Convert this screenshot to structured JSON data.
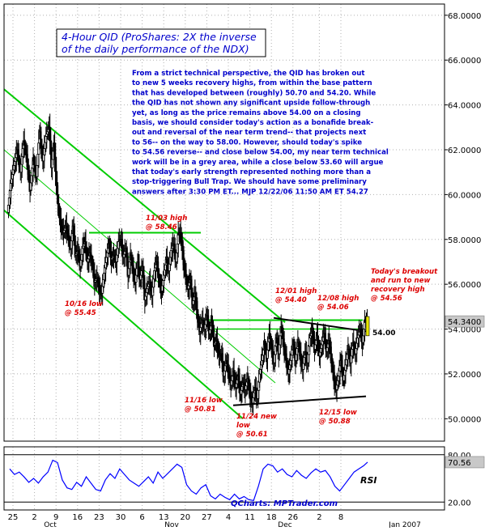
{
  "chart_data": {
    "type": "candlestick",
    "title_lines": [
      "4-Hour QID (ProShares: 2X the inverse",
      "of the daily performance of the NDX)"
    ],
    "commentary_lines": [
      "From a strict technical perspective, the QID has broken out",
      "to new 5 weeks recovery highs, from within the base pattern",
      "that has developed between (roughly) 50.70 and 54.20. While",
      "the QID has not shown any significant upside follow-through",
      "yet, as long as the price remains above 54.00 on a closing",
      "basis, we should consider today's action as a bonafide break-",
      "out and reversal of the near term trend-- that projects next",
      "to 56-- on the way to 58.00. However, should today's spike",
      "to 54.56 reverse-- and close below 54.00, my near term technical",
      "work will be in a grey area, while a close below 53.60 will argue",
      "that today's early strength represented nothing more than a",
      "stop-triggering Bull Trap. We should have some preliminary",
      "answers after 3:30 PM ET... MJP 12/22/06  11:50 AM ET 54.27"
    ],
    "y_axis": {
      "min": 49.0,
      "max": 68.5,
      "ticks": [
        "50.0000",
        "52.0000",
        "54.0000",
        "56.0000",
        "58.0000",
        "60.0000",
        "62.0000",
        "64.0000",
        "66.0000",
        "68.0000"
      ],
      "tick_values": [
        50,
        52,
        54,
        56,
        58,
        60,
        62,
        64,
        66,
        68
      ],
      "last_price_label": "54.3400",
      "last_price": 54.34
    },
    "x_axis": {
      "day_labels": [
        "25",
        "2",
        "9",
        "16",
        "23",
        "30",
        "6",
        "13",
        "20",
        "27",
        "4",
        "11",
        "18",
        "26",
        "2",
        "8"
      ],
      "month_labels": [
        "Oct",
        "Nov",
        "Dec",
        "Jan 2007"
      ]
    },
    "annotations": [
      {
        "lines": [
          "11/03 high",
          "@ 58.46"
        ],
        "color": "#dd0000"
      },
      {
        "lines": [
          "10/16 low",
          "@ 55.45"
        ],
        "color": "#dd0000"
      },
      {
        "lines": [
          "12/01 high",
          "@ 54.40"
        ],
        "color": "#dd0000"
      },
      {
        "lines": [
          "12/08 high",
          "@ 54.06"
        ],
        "color": "#dd0000"
      },
      {
        "lines": [
          "Today's breakout",
          "and run to new",
          "recovery high",
          "@ 54.56"
        ],
        "color": "#dd0000"
      },
      {
        "lines": [
          "11/16 low",
          "@ 50.81"
        ],
        "color": "#dd0000"
      },
      {
        "lines": [
          "11/24 new",
          "low",
          "@ 50.61"
        ],
        "color": "#dd0000"
      },
      {
        "lines": [
          "12/15 low",
          "@ 50.88"
        ],
        "color": "#dd0000"
      },
      {
        "lines": [
          "54.00"
        ],
        "color": "#000000"
      }
    ],
    "price_path": [
      [
        0,
        59.2
      ],
      [
        4,
        60.5
      ],
      [
        8,
        61.3
      ],
      [
        12,
        62.0
      ],
      [
        16,
        61.0
      ],
      [
        20,
        62.4
      ],
      [
        24,
        61.6
      ],
      [
        28,
        60.2
      ],
      [
        32,
        61.5
      ],
      [
        36,
        60.8
      ],
      [
        40,
        62.8
      ],
      [
        44,
        61.5
      ],
      [
        48,
        62.6
      ],
      [
        52,
        63.0
      ],
      [
        55,
        61.2
      ],
      [
        58,
        62.3
      ],
      [
        61,
        60.4
      ],
      [
        64,
        59.2
      ],
      [
        67,
        58.6
      ],
      [
        70,
        58.3
      ],
      [
        73,
        58.6
      ],
      [
        76,
        58.1
      ],
      [
        79,
        57.6
      ],
      [
        82,
        58.6
      ],
      [
        85,
        57.3
      ],
      [
        88,
        57.5
      ],
      [
        91,
        56.8
      ],
      [
        94,
        57.6
      ],
      [
        97,
        57.9
      ],
      [
        100,
        57.0
      ],
      [
        103,
        57.4
      ],
      [
        106,
        56.9
      ],
      [
        109,
        56.1
      ],
      [
        112,
        56.3
      ],
      [
        115,
        55.7
      ],
      [
        118,
        55.6
      ],
      [
        121,
        56.5
      ],
      [
        124,
        57.2
      ],
      [
        127,
        57.8
      ],
      [
        130,
        57.1
      ],
      [
        133,
        57.3
      ],
      [
        136,
        57.0
      ],
      [
        139,
        57.9
      ],
      [
        142,
        58.0
      ],
      [
        145,
        57.2
      ],
      [
        148,
        57.6
      ],
      [
        151,
        56.4
      ],
      [
        154,
        57.3
      ],
      [
        157,
        56.6
      ],
      [
        160,
        56.1
      ],
      [
        163,
        57.0
      ],
      [
        166,
        56.2
      ],
      [
        169,
        56.8
      ],
      [
        172,
        55.3
      ],
      [
        175,
        55.8
      ],
      [
        178,
        56.1
      ],
      [
        181,
        55.5
      ],
      [
        184,
        56.6
      ],
      [
        187,
        57.0
      ],
      [
        190,
        56.1
      ],
      [
        193,
        55.7
      ],
      [
        196,
        56.4
      ],
      [
        199,
        57.1
      ],
      [
        202,
        56.6
      ],
      [
        205,
        57.5
      ],
      [
        208,
        57.8
      ],
      [
        211,
        57.0
      ],
      [
        214,
        58.2
      ],
      [
        217,
        58.3
      ],
      [
        220,
        57.1
      ],
      [
        223,
        56.4
      ],
      [
        226,
        55.8
      ],
      [
        229,
        56.2
      ],
      [
        232,
        55.1
      ],
      [
        235,
        55.6
      ],
      [
        238,
        54.5
      ],
      [
        241,
        53.9
      ],
      [
        244,
        54.4
      ],
      [
        247,
        54.0
      ],
      [
        250,
        54.6
      ],
      [
        253,
        53.8
      ],
      [
        256,
        54.3
      ],
      [
        259,
        53.3
      ],
      [
        262,
        53.5
      ],
      [
        265,
        52.8
      ],
      [
        268,
        52.9
      ],
      [
        271,
        51.9
      ],
      [
        274,
        52.6
      ],
      [
        277,
        52.1
      ],
      [
        280,
        51.5
      ],
      [
        283,
        52.1
      ],
      [
        286,
        51.4
      ],
      [
        289,
        51.9
      ],
      [
        292,
        51.1
      ],
      [
        295,
        51.6
      ],
      [
        298,
        51.3
      ],
      [
        301,
        51.8
      ],
      [
        304,
        51.0
      ],
      [
        307,
        50.7
      ],
      [
        310,
        51.4
      ],
      [
        313,
        50.9
      ],
      [
        316,
        52.0
      ],
      [
        319,
        52.6
      ],
      [
        322,
        53.3
      ],
      [
        325,
        52.7
      ],
      [
        328,
        53.8
      ],
      [
        331,
        53.1
      ],
      [
        334,
        52.5
      ],
      [
        337,
        53.6
      ],
      [
        340,
        52.9
      ],
      [
        343,
        54.1
      ],
      [
        346,
        53.3
      ],
      [
        349,
        52.7
      ],
      [
        352,
        52.0
      ],
      [
        355,
        52.6
      ],
      [
        358,
        53.3
      ],
      [
        361,
        52.6
      ],
      [
        364,
        53.4
      ],
      [
        367,
        52.8
      ],
      [
        370,
        52.2
      ],
      [
        373,
        53.0
      ],
      [
        376,
        52.5
      ],
      [
        379,
        53.6
      ],
      [
        382,
        53.9
      ],
      [
        385,
        53.1
      ],
      [
        388,
        53.7
      ],
      [
        391,
        52.8
      ],
      [
        394,
        53.3
      ],
      [
        397,
        53.8
      ],
      [
        400,
        53.0
      ],
      [
        403,
        53.5
      ],
      [
        406,
        52.6
      ],
      [
        409,
        51.8
      ],
      [
        412,
        51.3
      ],
      [
        415,
        51.9
      ],
      [
        418,
        52.6
      ],
      [
        421,
        51.7
      ],
      [
        424,
        52.4
      ],
      [
        427,
        53.1
      ],
      [
        430,
        52.5
      ],
      [
        433,
        53.4
      ],
      [
        436,
        52.9
      ],
      [
        439,
        53.6
      ],
      [
        442,
        54.0
      ],
      [
        445,
        53.4
      ],
      [
        448,
        54.3
      ],
      [
        451,
        54.4
      ]
    ],
    "rsi": {
      "label": "RSI",
      "last_label": "70.56",
      "last_value": 70.56,
      "ticks": [
        "80.00",
        "20.00"
      ],
      "tick_values": [
        80,
        20
      ],
      "min": 10,
      "max": 90,
      "values": [
        [
          2,
          62
        ],
        [
          8,
          55
        ],
        [
          14,
          58
        ],
        [
          20,
          52
        ],
        [
          26,
          45
        ],
        [
          32,
          50
        ],
        [
          38,
          44
        ],
        [
          44,
          52
        ],
        [
          50,
          58
        ],
        [
          56,
          73
        ],
        [
          62,
          70
        ],
        [
          68,
          48
        ],
        [
          74,
          38
        ],
        [
          80,
          36
        ],
        [
          86,
          45
        ],
        [
          92,
          40
        ],
        [
          98,
          52
        ],
        [
          104,
          44
        ],
        [
          110,
          36
        ],
        [
          116,
          34
        ],
        [
          122,
          48
        ],
        [
          128,
          56
        ],
        [
          134,
          50
        ],
        [
          140,
          62
        ],
        [
          146,
          55
        ],
        [
          152,
          48
        ],
        [
          158,
          44
        ],
        [
          164,
          40
        ],
        [
          170,
          46
        ],
        [
          176,
          52
        ],
        [
          182,
          44
        ],
        [
          188,
          58
        ],
        [
          194,
          50
        ],
        [
          200,
          56
        ],
        [
          206,
          62
        ],
        [
          212,
          68
        ],
        [
          218,
          64
        ],
        [
          224,
          42
        ],
        [
          230,
          34
        ],
        [
          236,
          30
        ],
        [
          242,
          38
        ],
        [
          248,
          42
        ],
        [
          254,
          28
        ],
        [
          260,
          24
        ],
        [
          266,
          30
        ],
        [
          272,
          26
        ],
        [
          278,
          23
        ],
        [
          284,
          30
        ],
        [
          290,
          24
        ],
        [
          296,
          27
        ],
        [
          302,
          23
        ],
        [
          308,
          22
        ],
        [
          314,
          40
        ],
        [
          320,
          62
        ],
        [
          326,
          68
        ],
        [
          332,
          66
        ],
        [
          338,
          58
        ],
        [
          344,
          62
        ],
        [
          350,
          55
        ],
        [
          356,
          52
        ],
        [
          362,
          60
        ],
        [
          368,
          54
        ],
        [
          374,
          50
        ],
        [
          380,
          57
        ],
        [
          386,
          62
        ],
        [
          392,
          58
        ],
        [
          398,
          60
        ],
        [
          404,
          52
        ],
        [
          410,
          40
        ],
        [
          416,
          34
        ],
        [
          422,
          42
        ],
        [
          428,
          50
        ],
        [
          434,
          58
        ],
        [
          440,
          62
        ],
        [
          446,
          66
        ],
        [
          451,
          70.56
        ]
      ]
    },
    "footer_credit": "QCharts: MPTrader.com",
    "colors": {
      "candles": "#000000",
      "channel": "#00cc00",
      "horizontal_lines": "#00cc00",
      "triangle_lines": "#000000",
      "annotation": "#dd0000",
      "title": "#0000cc",
      "commentary": "#0000cc",
      "rsi_line": "#0000ff",
      "grid": "#b0b0b0",
      "frame": "#000000",
      "price_marker_bg": "#c8c8c8",
      "breakout_candle": "#e8e800"
    },
    "grid": true,
    "legend": "none"
  }
}
